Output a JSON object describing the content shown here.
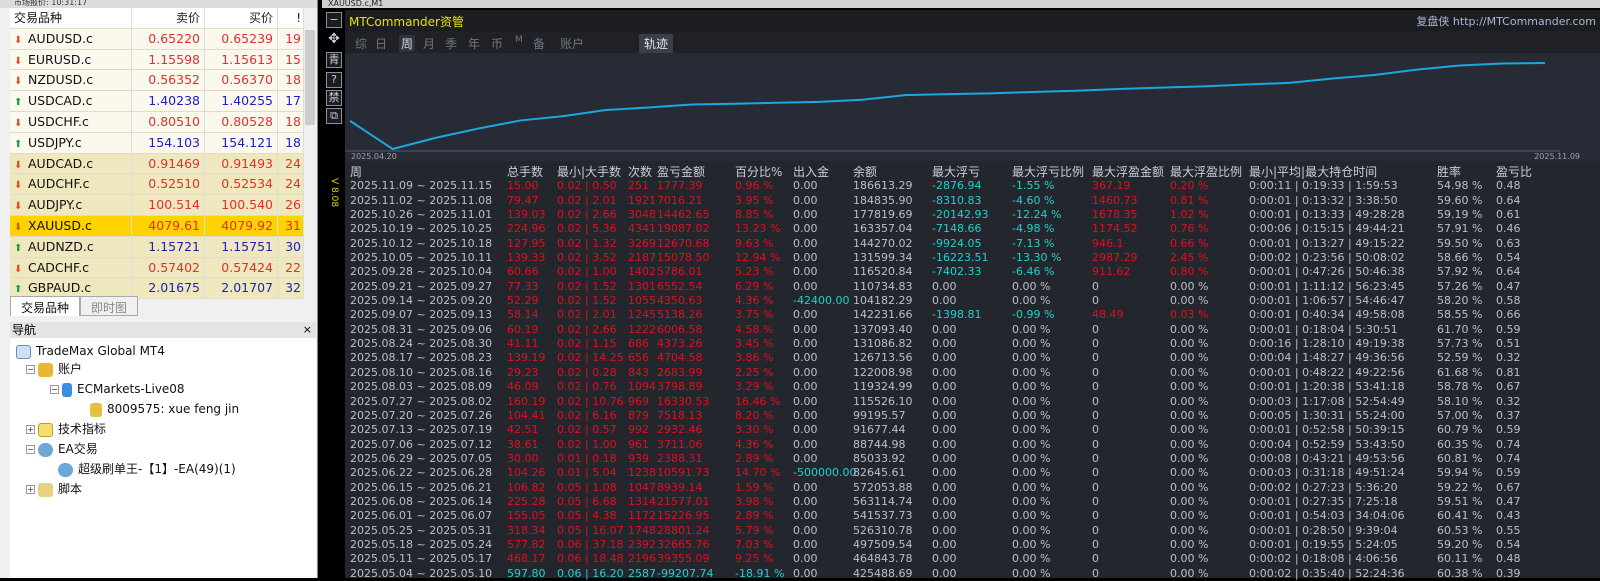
{
  "market_watch": {
    "title": "市场报价: 10:31:17",
    "headers": [
      "交易品种",
      "卖价",
      "买价",
      "!"
    ],
    "rows": [
      {
        "symbol": "AUDUSD.c",
        "bid": "0.65220",
        "ask": "0.65239",
        "spread": "19",
        "dir": "down"
      },
      {
        "symbol": "EURUSD.c",
        "bid": "1.15598",
        "ask": "1.15613",
        "spread": "15",
        "dir": "down"
      },
      {
        "symbol": "NZDUSD.c",
        "bid": "0.56352",
        "ask": "0.56370",
        "spread": "18",
        "dir": "down"
      },
      {
        "symbol": "USDCAD.c",
        "bid": "1.40238",
        "ask": "1.40255",
        "spread": "17",
        "dir": "up"
      },
      {
        "symbol": "USDCHF.c",
        "bid": "0.80510",
        "ask": "0.80528",
        "spread": "18",
        "dir": "down"
      },
      {
        "symbol": "USDJPY.c",
        "bid": "154.103",
        "ask": "154.121",
        "spread": "18",
        "dir": "up"
      },
      {
        "symbol": "AUDCAD.c",
        "bid": "0.91469",
        "ask": "0.91493",
        "spread": "24",
        "dir": "down"
      },
      {
        "symbol": "AUDCHF.c",
        "bid": "0.52510",
        "ask": "0.52534",
        "spread": "24",
        "dir": "down"
      },
      {
        "symbol": "AUDJPY.c",
        "bid": "100.514",
        "ask": "100.540",
        "spread": "26",
        "dir": "down"
      },
      {
        "symbol": "XAUUSD.c",
        "bid": "4079.61",
        "ask": "4079.92",
        "spread": "31",
        "dir": "down",
        "selected": true
      },
      {
        "symbol": "AUDNZD.c",
        "bid": "1.15721",
        "ask": "1.15751",
        "spread": "30",
        "dir": "up"
      },
      {
        "symbol": "CADCHF.c",
        "bid": "0.57402",
        "ask": "0.57424",
        "spread": "22",
        "dir": "down"
      },
      {
        "symbol": "GBPAUD.c",
        "bid": "2.01675",
        "ask": "2.01707",
        "spread": "32",
        "dir": "up"
      }
    ],
    "tabs": [
      "交易品种",
      "即时图"
    ],
    "colors": {
      "up": "#2020c0",
      "down": "#e03030",
      "selected": "#ffd200"
    }
  },
  "navigator": {
    "title": "导航",
    "close": "×",
    "items": [
      "TradeMax Global MT4",
      "账户",
      "ECMarkets-Live08",
      "8009575: xue feng jin",
      "技术指标",
      "EA交易",
      "超级刷单王-【1】-EA(49)(1)",
      "脚本"
    ]
  },
  "chart_window": {
    "title": "XAUUSD.c,M1",
    "version": "V 8.08",
    "toolbar": [
      "−",
      "✥",
      "青",
      "?",
      "禁",
      "⧉"
    ],
    "brand": "MTCommander资管",
    "site": "复盘侠 http://MTCommander.com",
    "menu": [
      "综",
      "日",
      "周",
      "月",
      "季",
      "年",
      "币",
      "M",
      "备",
      "账户"
    ],
    "active_menu": "周",
    "track_button": "轨迹",
    "start_date": "2025.04.20",
    "end_date": "2025.11.09",
    "line_color": "#1aa8e0"
  },
  "table": {
    "headers": [
      "周",
      "总手数",
      "最小|大手数",
      "次数",
      "盈亏金额",
      "百分比%",
      "出入金",
      "余额",
      "最大浮亏",
      "最大浮亏比例",
      "最大浮盈金额",
      "最大浮盈比例",
      "最小|平均|最大持仓时间",
      "胜率",
      "盈亏比"
    ],
    "rows": [
      [
        "2025.11.09 ~ 2025.11.15",
        "15.00",
        "0.02 | 0.50",
        "251",
        "1777.39",
        "0.96 %",
        "0.00",
        "186613.29",
        "-2876.94",
        "-1.55 %",
        "367.19",
        "0.20 %",
        "0:00:11 | 0:19:33 | 1:59:53",
        "54.98 %",
        "0.48"
      ],
      [
        "2025.11.02 ~ 2025.11.08",
        "79.47",
        "0.02 | 2.01",
        "1921",
        "7016.21",
        "3.95 %",
        "0.00",
        "184835.90",
        "-8310.83",
        "-4.60 %",
        "1460.73",
        "0.81 %",
        "0:00:01 | 0:13:32 | 3:38:50",
        "59.60 %",
        "0.64"
      ],
      [
        "2025.10.26 ~ 2025.11.01",
        "139.03",
        "0.02 | 2.66",
        "3048",
        "14462.65",
        "8.85 %",
        "0.00",
        "177819.69",
        "-20142.93",
        "-12.24 %",
        "1678.35",
        "1.02 %",
        "0:00:01 | 0:13:33 | 49:28:28",
        "59.19 %",
        "0.61"
      ],
      [
        "2025.10.19 ~ 2025.10.25",
        "224.96",
        "0.02 | 5.36",
        "4341",
        "19087.02",
        "13.23 %",
        "0.00",
        "163357.04",
        "-7148.66",
        "-4.98 %",
        "1174.52",
        "0.76 %",
        "0:00:06 | 0:15:15 | 49:44:21",
        "57.91 %",
        "0.46"
      ],
      [
        "2025.10.12 ~ 2025.10.18",
        "127.95",
        "0.02 | 1.32",
        "3269",
        "12670.68",
        "9.63 %",
        "0.00",
        "144270.02",
        "-9924.05",
        "-7.13 %",
        "946.1",
        "0.66 %",
        "0:00:01 | 0:13:27 | 49:15:22",
        "59.50 %",
        "0.63"
      ],
      [
        "2025.10.05 ~ 2025.10.11",
        "139.33",
        "0.02 | 3.52",
        "2187",
        "15078.50",
        "12.94 %",
        "0.00",
        "131599.34",
        "-16223.51",
        "-13.30 %",
        "2987.29",
        "2.45 %",
        "0:00:02 | 0:23:56 | 50:08:02",
        "58.66 %",
        "0.54"
      ],
      [
        "2025.09.28 ~ 2025.10.04",
        "60.66",
        "0.02 | 1.00",
        "1402",
        "5786.01",
        "5.23 %",
        "0.00",
        "116520.84",
        "-7402.33",
        "-6.46 %",
        "911.62",
        "0.80 %",
        "0:00:01 | 0:47:26 | 50:46:38",
        "57.92 %",
        "0.64"
      ],
      [
        "2025.09.21 ~ 2025.09.27",
        "77.33",
        "0.02 | 1.52",
        "1301",
        "6552.54",
        "6.29 %",
        "0.00",
        "110734.83",
        "0.00",
        "0.00 %",
        "0",
        "0.00 %",
        "0:00:01 | 1:11:12 | 56:23:45",
        "57.26 %",
        "0.47"
      ],
      [
        "2025.09.14 ~ 2025.09.20",
        "52.29",
        "0.02 | 1.52",
        "1055",
        "4350.63",
        "4.36 %",
        "-42400.00",
        "104182.29",
        "0.00",
        "0.00 %",
        "0",
        "0.00 %",
        "0:00:01 | 1:06:57 | 54:46:47",
        "58.20 %",
        "0.58"
      ],
      [
        "2025.09.07 ~ 2025.09.13",
        "58.14",
        "0.02 | 2.01",
        "1245",
        "5138.26",
        "3.75 %",
        "0.00",
        "142231.66",
        "-1398.81",
        "-0.99 %",
        "48.49",
        "0.03 %",
        "0:00:01 | 0:40:34 | 49:58:08",
        "58.55 %",
        "0.66"
      ],
      [
        "2025.08.31 ~ 2025.09.06",
        "60.19",
        "0.02 | 2.66",
        "1222",
        "6006.58",
        "4.58 %",
        "0.00",
        "137093.40",
        "0.00",
        "0.00 %",
        "0",
        "0.00 %",
        "0:00:01 | 0:18:04 | 5:30:51",
        "61.70 %",
        "0.59"
      ],
      [
        "2025.08.24 ~ 2025.08.30",
        "41.11",
        "0.02 | 1.15",
        "686",
        "4373.26",
        "3.45 %",
        "0.00",
        "131086.82",
        "0.00",
        "0.00 %",
        "0",
        "0.00 %",
        "0:00:16 | 1:28:10 | 49:19:38",
        "57.73 %",
        "0.51"
      ],
      [
        "2025.08.17 ~ 2025.08.23",
        "139.19",
        "0.02 | 14.25",
        "656",
        "4704.58",
        "3.86 %",
        "0.00",
        "126713.56",
        "0.00",
        "0.00 %",
        "0",
        "0.00 %",
        "0:00:04 | 1:48:27 | 49:36:56",
        "52.59 %",
        "0.32"
      ],
      [
        "2025.08.10 ~ 2025.08.16",
        "29.23",
        "0.02 | 0.28",
        "843",
        "2683.99",
        "2.25 %",
        "0.00",
        "122008.98",
        "0.00",
        "0.00 %",
        "0",
        "0.00 %",
        "0:00:01 | 0:48:22 | 49:22:56",
        "61.68 %",
        "0.81"
      ],
      [
        "2025.08.03 ~ 2025.08.09",
        "46.09",
        "0.02 | 0.76",
        "1094",
        "3798.89",
        "3.29 %",
        "0.00",
        "119324.99",
        "0.00",
        "0.00 %",
        "0",
        "0.00 %",
        "0:00:01 | 1:20:38 | 53:41:18",
        "58.78 %",
        "0.67"
      ],
      [
        "2025.07.27 ~ 2025.08.02",
        "160.19",
        "0.02 | 10.76",
        "969",
        "16330.53",
        "16.46 %",
        "0.00",
        "115526.10",
        "0.00",
        "0.00 %",
        "0",
        "0.00 %",
        "0:00:03 | 1:17:08 | 52:54:49",
        "58.10 %",
        "0.32"
      ],
      [
        "2025.07.20 ~ 2025.07.26",
        "104.41",
        "0.02 | 6.16",
        "879",
        "7518.13",
        "8.20 %",
        "0.00",
        "99195.57",
        "0.00",
        "0.00 %",
        "0",
        "0.00 %",
        "0:00:05 | 1:30:31 | 55:24:00",
        "57.00 %",
        "0.37"
      ],
      [
        "2025.07.13 ~ 2025.07.19",
        "42.51",
        "0.02 | 0.57",
        "992",
        "2932.46",
        "3.30 %",
        "0.00",
        "91677.44",
        "0.00",
        "0.00 %",
        "0",
        "0.00 %",
        "0:00:01 | 0:52:58 | 50:39:15",
        "60.79 %",
        "0.59"
      ],
      [
        "2025.07.06 ~ 2025.07.12",
        "38.61",
        "0.02 | 1.00",
        "961",
        "3711.06",
        "4.36 %",
        "0.00",
        "88744.98",
        "0.00",
        "0.00 %",
        "0",
        "0.00 %",
        "0:00:04 | 0:52:59 | 53:43:50",
        "60.35 %",
        "0.74"
      ],
      [
        "2025.06.29 ~ 2025.07.05",
        "30.00",
        "0.01 | 0.18",
        "939",
        "2388.31",
        "2.89 %",
        "0.00",
        "85033.92",
        "0.00",
        "0.00 %",
        "0",
        "0.00 %",
        "0:00:08 | 0:43:21 | 49:53:56",
        "60.81 %",
        "0.74"
      ],
      [
        "2025.06.22 ~ 2025.06.28",
        "104.26",
        "0.01 | 5.04",
        "1238",
        "10591.73",
        "14.70 %",
        "-500000.00",
        "82645.61",
        "0.00",
        "0.00 %",
        "0",
        "0.00 %",
        "0:00:03 | 0:31:18 | 49:51:24",
        "59.94 %",
        "0.59"
      ],
      [
        "2025.06.15 ~ 2025.06.21",
        "106.82",
        "0.05 | 1.08",
        "1047",
        "8939.14",
        "1.59 %",
        "0.00",
        "572053.88",
        "0.00",
        "0.00 %",
        "0",
        "0.00 %",
        "0:00:02 | 0:27:23 | 5:36:20",
        "59.22 %",
        "0.67"
      ],
      [
        "2025.06.08 ~ 2025.06.14",
        "225.28",
        "0.05 | 6.68",
        "1314",
        "21577.01",
        "3.98 %",
        "0.00",
        "563114.74",
        "0.00",
        "0.00 %",
        "0",
        "0.00 %",
        "0:00:01 | 0:27:35 | 7:25:18",
        "59.51 %",
        "0.47"
      ],
      [
        "2025.06.01 ~ 2025.06.07",
        "155.05",
        "0.05 | 4.38",
        "1172",
        "15226.95",
        "2.89 %",
        "0.00",
        "541537.73",
        "0.00",
        "0.00 %",
        "0",
        "0.00 %",
        "0:00:01 | 0:54:03 | 34:04:06",
        "60.41 %",
        "0.43"
      ],
      [
        "2025.05.25 ~ 2025.05.31",
        "318.34",
        "0.05 | 16.07",
        "1748",
        "28801.24",
        "5.79 %",
        "0.00",
        "526310.78",
        "0.00",
        "0.00 %",
        "0",
        "0.00 %",
        "0:00:01 | 0:28:50 | 9:39:04",
        "60.53 %",
        "0.55"
      ],
      [
        "2025.05.18 ~ 2025.05.24",
        "577.82",
        "0.06 | 37.18",
        "2392",
        "32665.76",
        "7.03 %",
        "0.00",
        "497509.54",
        "0.00",
        "0.00 %",
        "0",
        "0.00 %",
        "0:00:01 | 0:19:55 | 5:24:05",
        "59.20 %",
        "0.54"
      ],
      [
        "2025.05.11 ~ 2025.05.17",
        "468.17",
        "0.06 | 18.48",
        "2196",
        "39355.09",
        "9.25 %",
        "0.00",
        "464843.78",
        "0.00",
        "0.00 %",
        "0",
        "0.00 %",
        "0:00:02 | 0:18:08 | 4:06:56",
        "60.11 %",
        "0.48"
      ],
      [
        "2025.05.04 ~ 2025.05.10",
        "597.80",
        "0.06 | 16.20",
        "2587",
        "-99207.74",
        "-18.91 %",
        "0.00",
        "425488.69",
        "0.00",
        "0.00 %",
        "0",
        "0.00 %",
        "0:00:02 | 0:35:40 | 52:24:36",
        "60.38 %",
        "0.39"
      ]
    ],
    "colors": {
      "profit": "#e01020",
      "loss": "#20d0d0",
      "neutral": "#b8c0cc"
    }
  }
}
